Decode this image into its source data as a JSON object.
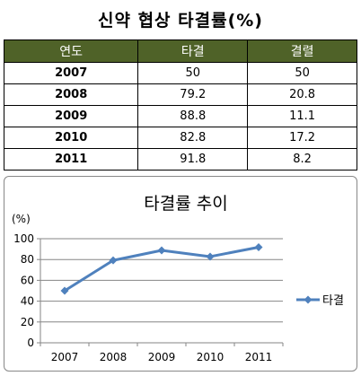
{
  "title": "신약 협상 타결률(%)",
  "table": {
    "headers": [
      "연도",
      "타결",
      "결렬"
    ],
    "rows": [
      [
        "2007",
        "50",
        "50"
      ],
      [
        "2008",
        "79.2",
        "20.8"
      ],
      [
        "2009",
        "88.8",
        "11.1"
      ],
      [
        "2010",
        "82.8",
        "17.2"
      ],
      [
        "2011",
        "91.8",
        "8.2"
      ]
    ]
  },
  "chart_data": {
    "type": "line",
    "title": "타결률 추이",
    "ylabel": "(%)",
    "xlabel": "",
    "categories": [
      "2007",
      "2008",
      "2009",
      "2010",
      "2011"
    ],
    "series": [
      {
        "name": "타결",
        "values": [
          50,
          79.2,
          88.8,
          82.8,
          91.8
        ],
        "color": "#4f81bd"
      }
    ],
    "ylim": [
      0,
      100
    ],
    "yticks": [
      0,
      20,
      40,
      60,
      80,
      100
    ],
    "grid": true,
    "legend": "right"
  }
}
